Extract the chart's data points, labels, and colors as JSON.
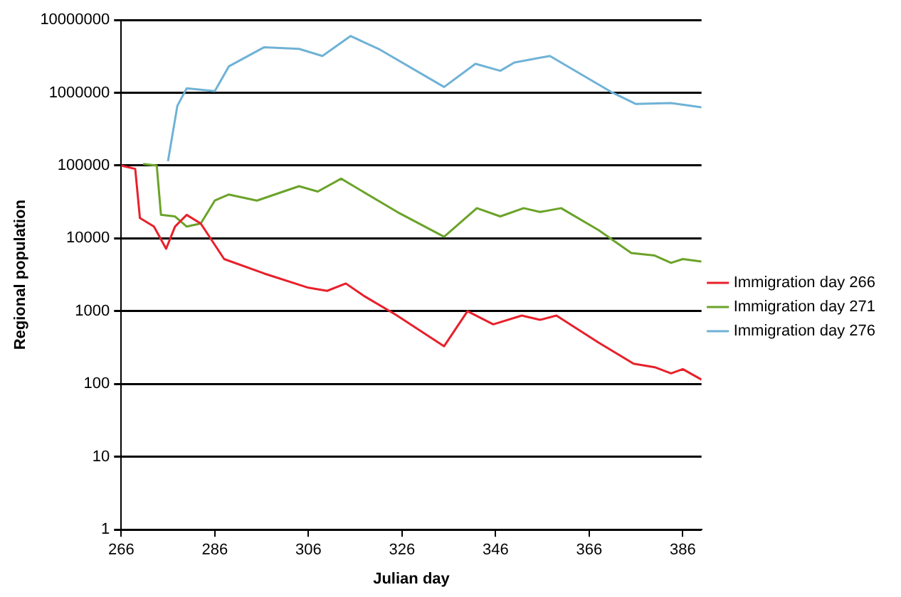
{
  "chart_data": {
    "type": "line",
    "xlabel": "Julian day",
    "ylabel": "Regional population",
    "log": "y",
    "grid": "y",
    "legend": "right",
    "marker": "none",
    "line_style": "solid",
    "xlim": [
      266,
      390
    ],
    "xticks": [
      266,
      286,
      306,
      326,
      346,
      366,
      386
    ],
    "ylim": [
      1,
      10000000
    ],
    "yticks": [
      1,
      10,
      100,
      1000,
      10000,
      100000,
      1000000,
      10000000
    ],
    "series": [
      {
        "name": "Immigration day 266",
        "color": "#e8202a",
        "x": [
          266,
          269,
          270,
          273,
          275.6,
          277.5,
          280,
          283,
          288,
          296.5,
          306,
          310,
          314,
          318,
          324.6,
          335,
          340,
          345.5,
          351.6,
          355.5,
          359,
          368,
          375.5,
          380,
          383.5,
          386,
          390
        ],
        "values": [
          100000,
          90000,
          19000,
          14500,
          7200,
          14500,
          21000,
          16000,
          5200,
          3300,
          2100,
          1900,
          2400,
          1600,
          900,
          330,
          1000,
          660,
          870,
          760,
          870,
          370,
          190,
          170,
          140,
          160,
          115
        ]
      },
      {
        "name": "Immigration day 271",
        "color": "#6aa329",
        "x": [
          270.7,
          273.6,
          274.5,
          277.5,
          280,
          283,
          286,
          289,
          295,
          304,
          308,
          313,
          325,
          335,
          342,
          347,
          352,
          355.5,
          360,
          368,
          375,
          380,
          383.5,
          386,
          390
        ],
        "values": [
          105000,
          100000,
          21000,
          20000,
          14500,
          16000,
          33000,
          40000,
          33000,
          52000,
          44000,
          66000,
          23000,
          10500,
          26000,
          20000,
          26000,
          23000,
          26000,
          13000,
          6300,
          5800,
          4600,
          5200,
          4800
        ]
      },
      {
        "name": "Immigration day 276",
        "color": "#6fb2d6",
        "x": [
          276,
          278,
          280,
          286,
          289,
          296.5,
          304,
          309,
          315,
          321,
          335,
          341.7,
          347,
          350,
          357.6,
          371,
          376,
          383.5,
          390
        ],
        "values": [
          115000,
          660000,
          1150000,
          1050000,
          2300000,
          4200000,
          4000000,
          3200000,
          6000000,
          4000000,
          1200000,
          2500000,
          2000000,
          2600000,
          3200000,
          1000000,
          700000,
          720000,
          630000
        ]
      }
    ]
  }
}
